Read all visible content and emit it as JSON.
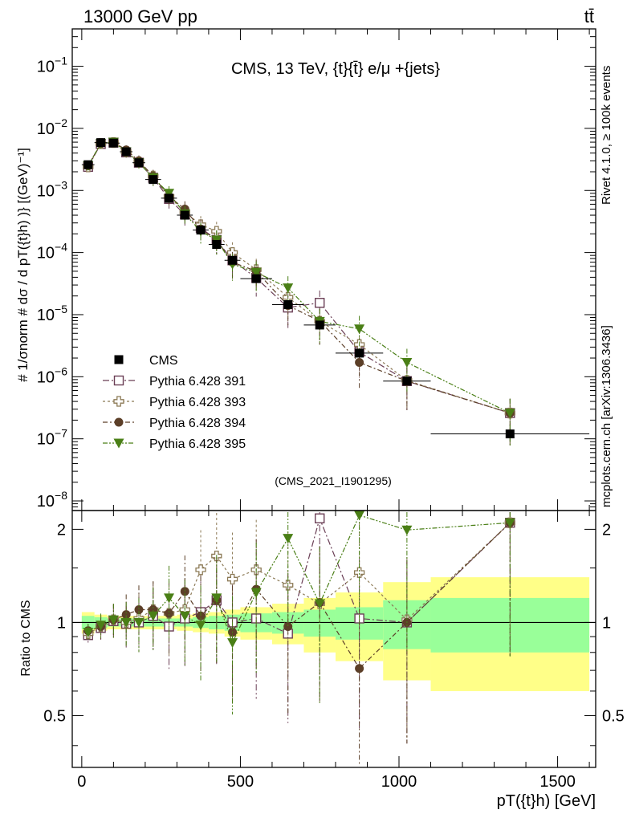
{
  "header": {
    "left": "13000 GeV pp",
    "right": "tt̄"
  },
  "side": {
    "rivet": "Rivet 4.1.0, ≥ 100k events",
    "mcplots": "mcplots.cern.ch [arXiv:1306.3436]"
  },
  "colors": {
    "data": "#000000",
    "p391": "#6a3e55",
    "p393": "#8c7a56",
    "p394": "#5c3f28",
    "p395": "#4a7f16",
    "band_inner": "#99ff99",
    "band_outer": "#ffff88"
  },
  "chart_data": [
    {
      "type": "scatter",
      "title": "CMS, 13 TeV, {t}{t̄} e/μ +{jets}",
      "watermark": "(CMS_2021_I1901295)",
      "ylabel": "# 1/σnorm # dσ / d pT({t}h) )} [(GeV)⁻¹]",
      "yscale": "log",
      "ylim": [
        7e-09,
        0.4
      ],
      "xlim": [
        -30,
        1620
      ],
      "yticks": [
        {
          "v": 1e-08,
          "base": "10",
          "exp": "−8"
        },
        {
          "v": 1e-07,
          "base": "10",
          "exp": "−7"
        },
        {
          "v": 1e-06,
          "base": "10",
          "exp": "−6"
        },
        {
          "v": 1e-05,
          "base": "10",
          "exp": "−5"
        },
        {
          "v": 0.0001,
          "base": "10",
          "exp": "−4"
        },
        {
          "v": 0.001,
          "base": "10",
          "exp": "−3"
        },
        {
          "v": 0.01,
          "base": "10",
          "exp": "−2"
        },
        {
          "v": 0.1,
          "base": "10",
          "exp": "−1"
        }
      ],
      "legend": {
        "position": "middle-left",
        "entries": [
          "CMS",
          "Pythia 6.428 391",
          "Pythia 6.428 393",
          "Pythia 6.428 394",
          "Pythia 6.428 395"
        ]
      },
      "x": [
        20,
        60,
        100,
        140,
        180,
        225,
        275,
        325,
        375,
        425,
        475,
        550,
        650,
        750,
        875,
        1025,
        1350
      ],
      "xerr": [
        20,
        20,
        20,
        20,
        20,
        25,
        25,
        25,
        25,
        25,
        25,
        50,
        50,
        50,
        75,
        75,
        250
      ],
      "series": [
        {
          "name": "CMS",
          "key": "data",
          "marker": "square-filled",
          "values": [
            0.0026,
            0.0059,
            0.0058,
            0.0042,
            0.0028,
            0.0015,
            0.00075,
            0.0004,
            0.00023,
            0.000135,
            7.5e-05,
            3.8e-05,
            1.45e-05,
            6.8e-06,
            2.4e-06,
            8.5e-07,
            1.2e-07
          ]
        },
        {
          "name": "Pythia 6.428 391",
          "key": "p391",
          "marker": "square-open",
          "values": [
            0.0024,
            0.0056,
            0.0059,
            0.0041,
            0.0028,
            0.0016,
            0.00073,
            0.00041,
            0.00025,
            0.00016,
            7.5e-05,
            3.9e-05,
            1.3e-05,
            1.55e-05,
            2.5e-06,
            8.5e-07,
            2.6e-07
          ]
        },
        {
          "name": "Pythia 6.428 393",
          "key": "p393",
          "marker": "cross-open",
          "values": [
            0.0024,
            0.0057,
            0.0059,
            0.0042,
            0.0029,
            0.0017,
            0.0008,
            0.00045,
            0.00028,
            0.00022,
            0.0001,
            5.3e-05,
            1.9e-05,
            7.8e-06,
            3.3e-06,
            8.7e-07,
            2.6e-07
          ]
        },
        {
          "name": "Pythia 6.428 394",
          "key": "p394",
          "marker": "circle-filled",
          "values": [
            0.0025,
            0.0057,
            0.006,
            0.0045,
            0.003,
            0.0017,
            0.0008,
            0.0005,
            0.00024,
            0.00016,
            7e-05,
            5e-05,
            1.4e-05,
            7.9e-06,
            1.7e-06,
            8.5e-07,
            2.6e-07
          ]
        },
        {
          "name": "Pythia 6.428 395",
          "key": "p395",
          "marker": "triangle-down-filled",
          "values": [
            0.0025,
            0.0057,
            0.006,
            0.0042,
            0.0028,
            0.0016,
            0.0009,
            0.00042,
            0.00022,
            0.00016,
            6.5e-05,
            4.8e-05,
            2.7e-05,
            7.8e-06,
            5.9e-06,
            1.7e-06,
            2.6e-07
          ]
        }
      ]
    },
    {
      "type": "scatter",
      "ylabel": "Ratio to CMS",
      "xlabel": "pT({t}h) [GeV]",
      "ylim": [
        0.34,
        2.3
      ],
      "xlim": [
        -30,
        1620
      ],
      "yticks": [
        "0.5",
        "1",
        "2"
      ],
      "xticks": [
        "0",
        "500",
        "1000",
        "1500"
      ],
      "reference_line": 1,
      "band_edges": [
        0,
        40,
        80,
        120,
        160,
        200,
        250,
        300,
        350,
        400,
        450,
        500,
        600,
        700,
        800,
        950,
        1100,
        1600
      ],
      "band_inner": [
        0.05,
        0.04,
        0.03,
        0.03,
        0.03,
        0.03,
        0.03,
        0.03,
        0.04,
        0.05,
        0.06,
        0.07,
        0.08,
        0.1,
        0.12,
        0.18,
        0.2
      ],
      "band_outer": [
        0.08,
        0.06,
        0.05,
        0.05,
        0.05,
        0.05,
        0.05,
        0.06,
        0.07,
        0.08,
        0.1,
        0.12,
        0.15,
        0.2,
        0.25,
        0.35,
        0.4
      ],
      "series": [
        {
          "name": "Pythia 6.428 391",
          "key": "p391",
          "marker": "square-open",
          "values": [
            0.91,
            0.96,
            1.01,
            0.99,
            1.0,
            1.05,
            0.97,
            1.03,
            1.08,
            1.18,
            1.0,
            1.03,
            0.92,
            2.17,
            1.03,
            1.0,
            2.1
          ]
        },
        {
          "name": "Pythia 6.428 393",
          "key": "p393",
          "marker": "cross-open",
          "values": [
            0.92,
            0.97,
            1.02,
            1.0,
            1.03,
            1.1,
            1.07,
            1.1,
            1.48,
            1.64,
            1.38,
            1.48,
            1.32,
            1.15,
            1.45,
            1.02,
            2.1
          ]
        },
        {
          "name": "Pythia 6.428 394",
          "key": "p394",
          "marker": "circle-filled",
          "values": [
            0.94,
            0.97,
            1.02,
            1.06,
            1.1,
            1.1,
            1.07,
            1.26,
            1.05,
            1.18,
            0.93,
            1.28,
            0.97,
            1.16,
            0.71,
            1.0,
            2.1
          ]
        },
        {
          "name": "Pythia 6.428 395",
          "key": "p395",
          "marker": "triangle-down-filled",
          "values": [
            0.93,
            0.98,
            1.02,
            1.0,
            1.0,
            1.05,
            1.2,
            1.05,
            0.98,
            1.2,
            0.86,
            1.25,
            1.87,
            1.15,
            2.22,
            1.99,
            2.1
          ]
        }
      ]
    }
  ]
}
